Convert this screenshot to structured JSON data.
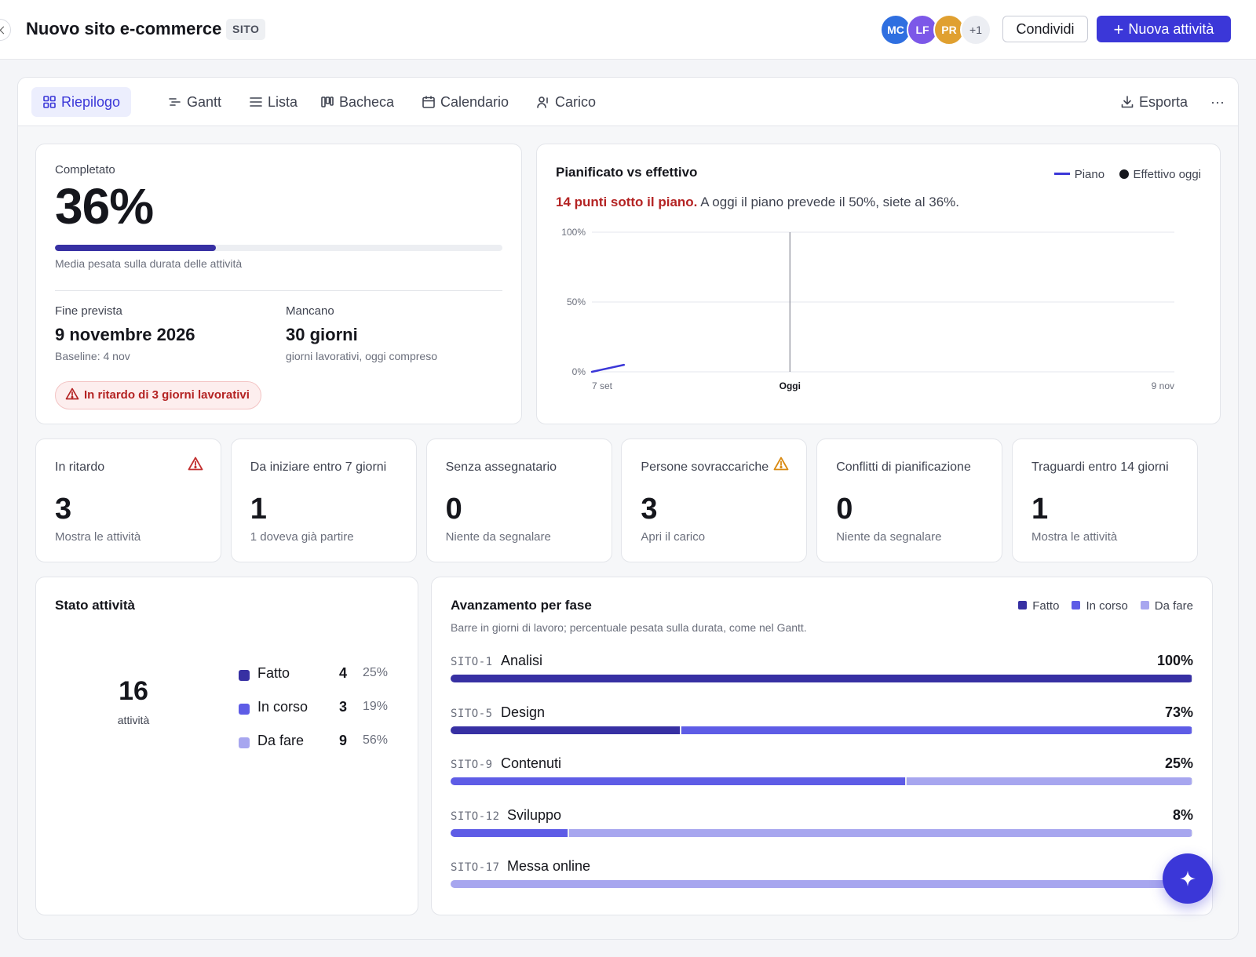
{
  "header": {
    "title": "Nuovo sito e-commerce",
    "project_key": "SITO",
    "avatars": [
      {
        "initials": "MC",
        "color": "#2f6fe0"
      },
      {
        "initials": "LF",
        "color": "#7c58e8"
      },
      {
        "initials": "PR",
        "color": "#e0a030"
      },
      {
        "initials": "+1",
        "color": "#eceef3"
      }
    ],
    "share_label": "Condividi",
    "new_task_label": "Nuova attività"
  },
  "tabs": [
    {
      "label": "Riepilogo",
      "icon": "grid-icon",
      "active": true
    },
    {
      "label": "Gantt",
      "icon": "gantt-icon",
      "active": false
    },
    {
      "label": "Lista",
      "icon": "list-icon",
      "active": false
    },
    {
      "label": "Bacheca",
      "icon": "board-icon",
      "active": false
    },
    {
      "label": "Calendario",
      "icon": "calendar-icon",
      "active": false
    },
    {
      "label": "Carico",
      "icon": "user-load-icon",
      "active": false
    }
  ],
  "toolbar": {
    "export_label": "Esporta",
    "more_label": "···"
  },
  "completion": {
    "label": "Completato",
    "value": "36%",
    "progress": 0.36,
    "note": "Media pesata sulla durata delle attività",
    "end_label": "Fine prevista",
    "end_value": "9 novembre 2026",
    "baseline": "Baseline: 4 nov",
    "remaining_label": "Mancano",
    "remaining_value": "30 giorni",
    "remaining_note": "giorni lavorativi, oggi compreso",
    "alert": "In ritardo di 3 giorni lavorativi"
  },
  "plan_vs_actual": {
    "title": "Pianificato vs effettivo",
    "legend_plan": "Piano",
    "legend_actual": "Effettivo oggi",
    "delta_strong": "14 punti sotto il piano.",
    "delta_rest": "A oggi il piano prevede il 50%, siete al 36%.",
    "plan_color": "#3b37d8",
    "actual_color": "#15161c"
  },
  "chart_data": {
    "type": "line",
    "title": "Pianificato vs effettivo",
    "y_ticks": [
      "0%",
      "50%",
      "100%"
    ],
    "ylim": [
      0,
      100
    ],
    "x_tick_labels": [
      "7 set",
      "Oggi",
      "9 nov"
    ],
    "series": [
      {
        "name": "Piano",
        "points": [
          [
            0,
            0
          ],
          [
            0.055,
            5
          ]
        ]
      }
    ],
    "today_position": 0.34,
    "grid": true,
    "legend": "top-right"
  },
  "kpis": [
    {
      "label": "In ritardo",
      "value": "3",
      "sub": "Mostra le attività",
      "warn": "red"
    },
    {
      "label": "Da iniziare entro 7 giorni",
      "value": "1",
      "sub": "1 doveva già partire",
      "warn": ""
    },
    {
      "label": "Senza assegnatario",
      "value": "0",
      "sub": "Niente da segnalare",
      "warn": ""
    },
    {
      "label": "Persone sovraccariche",
      "value": "3",
      "sub": "Apri il carico",
      "warn": "amber"
    },
    {
      "label": "Conflitti di pianificazione",
      "value": "0",
      "sub": "Niente da segnalare",
      "warn": ""
    },
    {
      "label": "Traguardi entro 14 giorni",
      "value": "1",
      "sub": "Mostra le attività",
      "warn": ""
    }
  ],
  "status": {
    "title": "Stato attività",
    "total": "16",
    "total_label": "attività",
    "rows": [
      {
        "name": "Fatto",
        "count": "4",
        "pct": "25%",
        "value": 4,
        "color": "#3730a3"
      },
      {
        "name": "In corso",
        "count": "3",
        "pct": "19%",
        "value": 3,
        "color": "#5e5ce6"
      },
      {
        "name": "Da fare",
        "count": "9",
        "pct": "56%",
        "value": 9,
        "color": "#a7a6ef"
      }
    ]
  },
  "phases": {
    "title": "Avanzamento per fase",
    "subtitle": "Barre in giorni di lavoro; percentuale pesata sulla durata, come nel Gantt.",
    "legend": [
      {
        "name": "Fatto",
        "color": "#3730a3"
      },
      {
        "name": "In corso",
        "color": "#5e5ce6"
      },
      {
        "name": "Da fare",
        "color": "#a7a6ef"
      }
    ],
    "rows": [
      {
        "code": "SITO-1",
        "name": "Analisi",
        "pct": "100%",
        "done": 1.0,
        "doing": 0.0,
        "todo": 0.0
      },
      {
        "code": "SITO-5",
        "name": "Design",
        "pct": "73%",
        "done": 0.31,
        "doing": 0.69,
        "todo": 0.0
      },
      {
        "code": "SITO-9",
        "name": "Contenuti",
        "pct": "25%",
        "done": 0.0,
        "doing": 0.615,
        "todo": 0.385
      },
      {
        "code": "SITO-12",
        "name": "Sviluppo",
        "pct": "8%",
        "done": 0.0,
        "doing": 0.158,
        "todo": 0.842
      },
      {
        "code": "SITO-17",
        "name": "Messa online",
        "pct": "",
        "done": 0.0,
        "doing": 0.0,
        "todo": 1.0
      }
    ]
  }
}
